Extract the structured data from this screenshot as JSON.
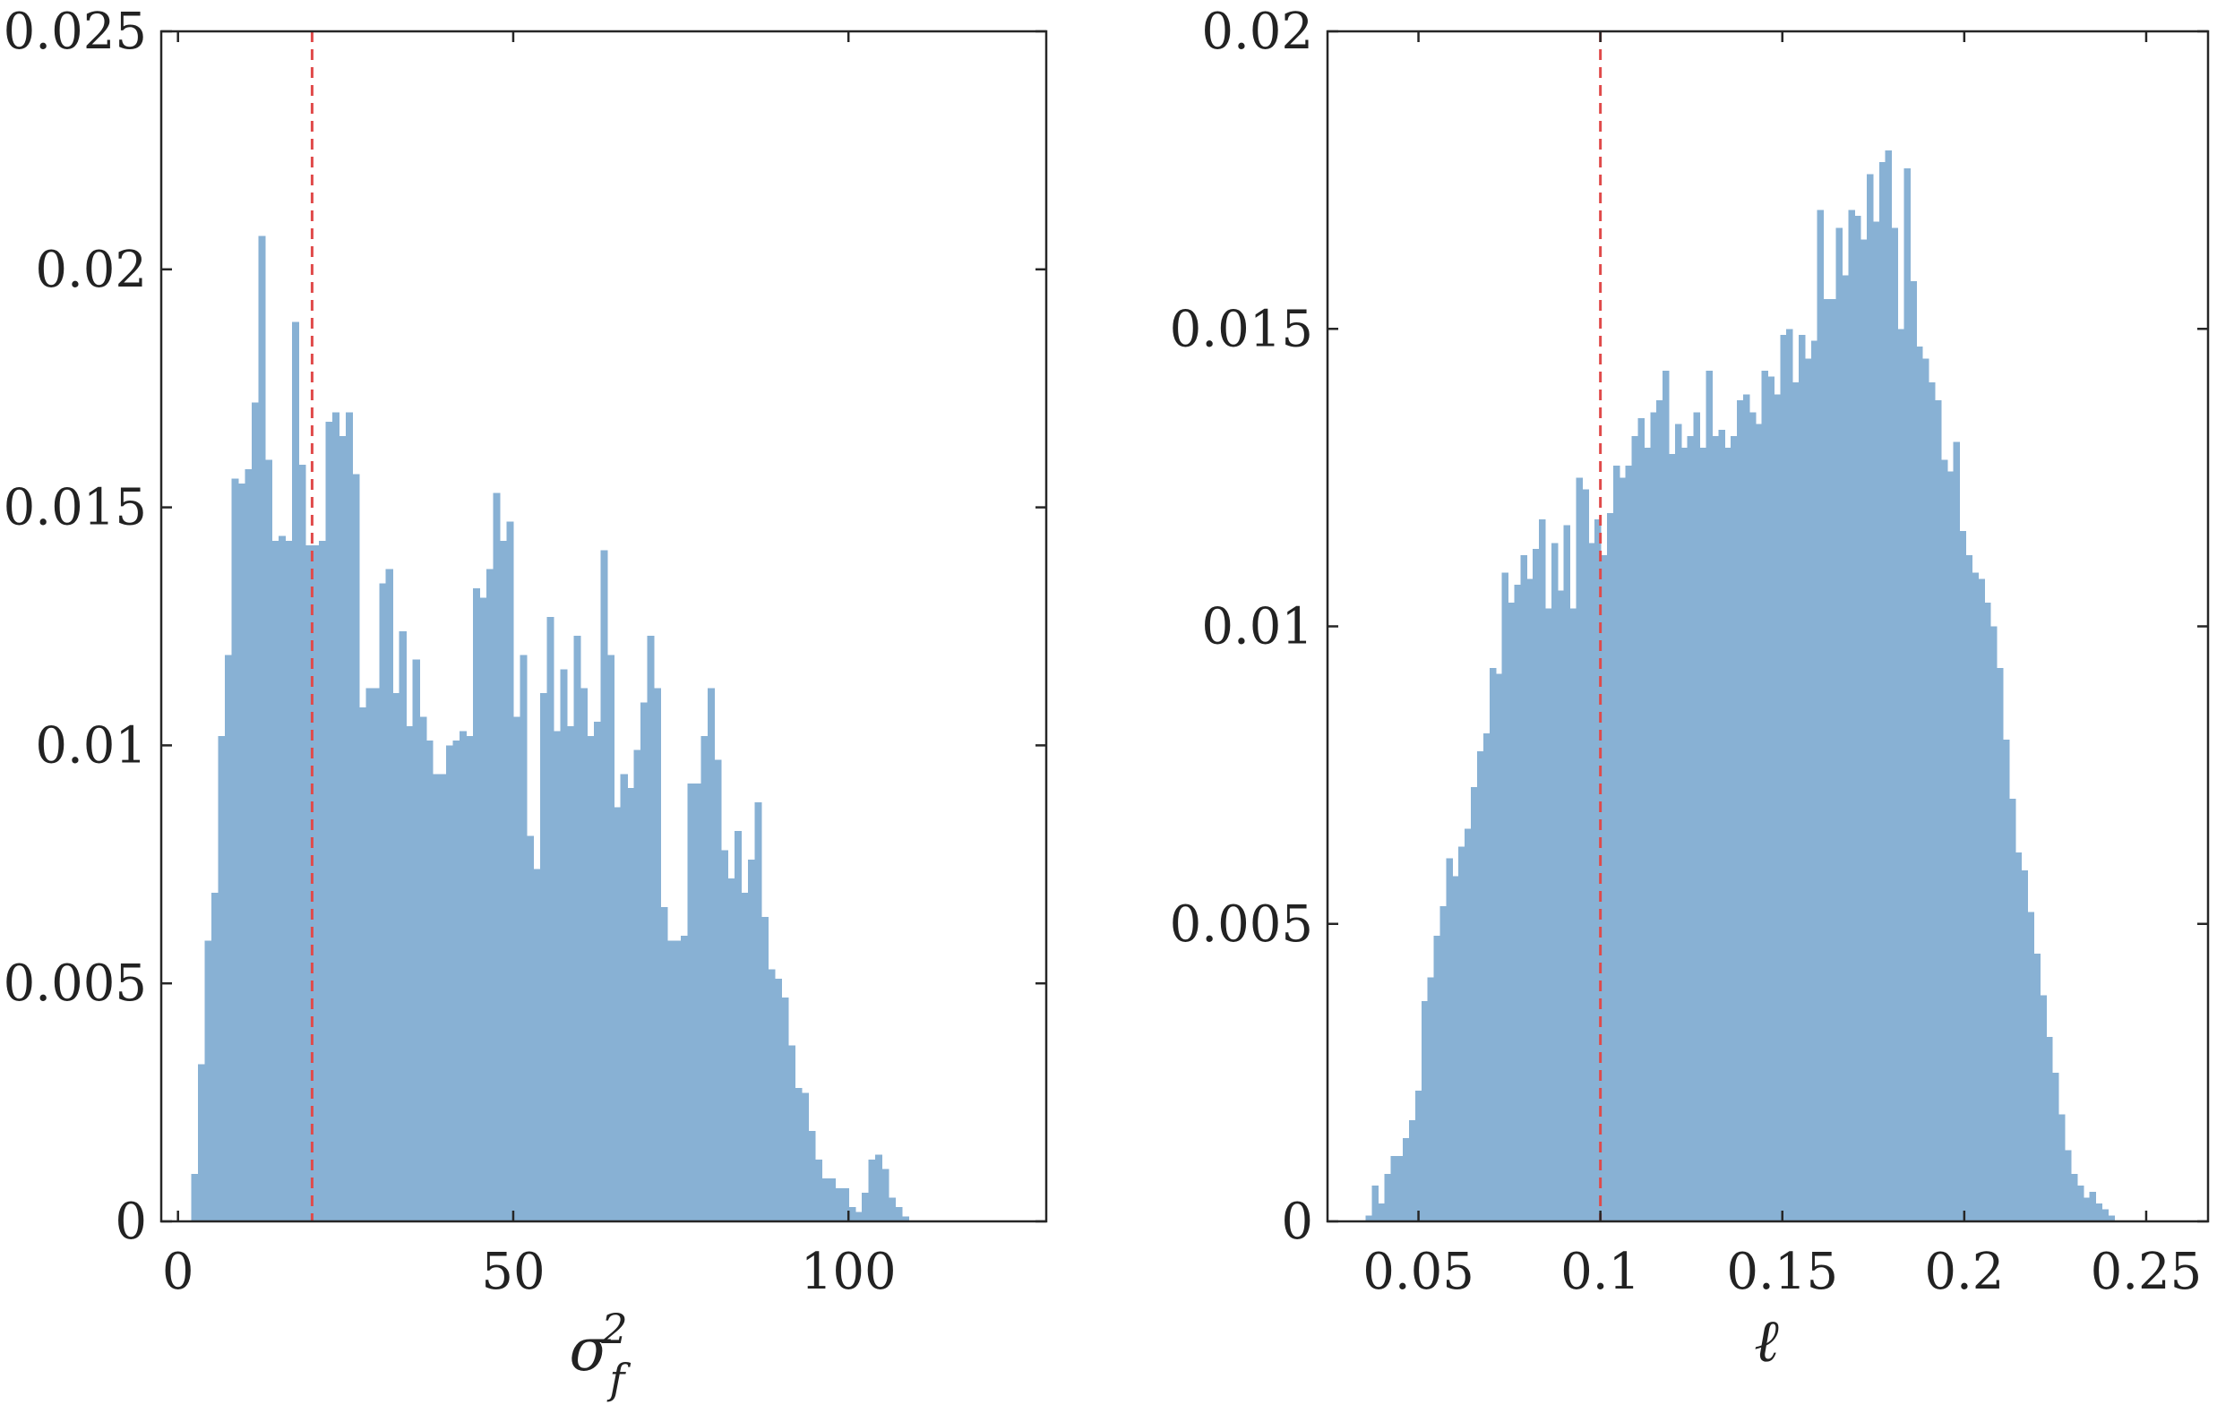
{
  "chart_data": [
    {
      "type": "bar",
      "subtype": "histogram",
      "xlabel": "σ_f^2",
      "xlabel_main": "σ",
      "xlabel_sub": "f",
      "xlabel_sup": "2",
      "ylabel": "",
      "xlim": [
        -2.5,
        129.5
      ],
      "ylim": [
        0,
        0.025
      ],
      "xticks": [
        0,
        50,
        100
      ],
      "xtick_labels": [
        "0",
        "50",
        "100"
      ],
      "yticks": [
        0,
        0.005,
        0.01,
        0.015,
        0.02,
        0.025
      ],
      "ytick_labels": [
        "0",
        "0.005",
        "0.01",
        "0.015",
        "0.02",
        "0.025"
      ],
      "bin_start": 2,
      "bin_width": 1,
      "values": [
        0.001,
        0.0033,
        0.0059,
        0.0069,
        0.0102,
        0.0119,
        0.0156,
        0.0155,
        0.0158,
        0.0172,
        0.0207,
        0.016,
        0.0143,
        0.0144,
        0.0143,
        0.0189,
        0.0159,
        0.0142,
        0.0142,
        0.0143,
        0.0168,
        0.017,
        0.0165,
        0.017,
        0.0157,
        0.0108,
        0.0112,
        0.0112,
        0.0134,
        0.0137,
        0.0111,
        0.0124,
        0.0104,
        0.0118,
        0.0106,
        0.0101,
        0.0094,
        0.0094,
        0.01,
        0.0101,
        0.0103,
        0.0102,
        0.0133,
        0.0131,
        0.0137,
        0.0153,
        0.0143,
        0.0147,
        0.0106,
        0.0119,
        0.0081,
        0.0074,
        0.0111,
        0.0127,
        0.0103,
        0.0116,
        0.0104,
        0.0123,
        0.0112,
        0.0102,
        0.0105,
        0.0141,
        0.0119,
        0.0087,
        0.0094,
        0.0091,
        0.0099,
        0.0109,
        0.0123,
        0.0112,
        0.0066,
        0.0059,
        0.0059,
        0.006,
        0.0092,
        0.0092,
        0.0102,
        0.0112,
        0.0097,
        0.0078,
        0.0072,
        0.0082,
        0.0069,
        0.0076,
        0.0088,
        0.0064,
        0.0053,
        0.0051,
        0.0047,
        0.0037,
        0.0028,
        0.0027,
        0.0019,
        0.0013,
        0.0009,
        0.0009,
        0.0007,
        0.0007,
        0.0003,
        0.0002,
        0.0006,
        0.0013,
        0.0014,
        0.0011,
        0.0005,
        0.0003,
        0.0001
      ],
      "bar_color": "#88b1d4",
      "reference_line": {
        "x": 20,
        "style": "dashed",
        "color": "#e04a4a"
      },
      "grid": false
    },
    {
      "type": "bar",
      "subtype": "histogram",
      "xlabel": "ℓ",
      "ylabel": "",
      "xlim": [
        0.025,
        0.267
      ],
      "ylim": [
        0,
        0.02
      ],
      "xticks": [
        0.05,
        0.1,
        0.15,
        0.2,
        0.25
      ],
      "xtick_labels": [
        "0.05",
        "0.1",
        "0.15",
        "0.2",
        "0.25"
      ],
      "yticks": [
        0,
        0.005,
        0.01,
        0.015,
        0.02
      ],
      "ytick_labels": [
        "0",
        "0.005",
        "0.01",
        "0.015",
        "0.02"
      ],
      "bin_start": 0.0355,
      "bin_width": 0.0017,
      "values": [
        0.0001,
        0.0006,
        0.0003,
        0.0008,
        0.0011,
        0.0011,
        0.0014,
        0.0017,
        0.0022,
        0.0037,
        0.0041,
        0.0048,
        0.0053,
        0.0061,
        0.0058,
        0.0063,
        0.0066,
        0.0073,
        0.0079,
        0.0082,
        0.0093,
        0.0092,
        0.0109,
        0.0104,
        0.0107,
        0.0112,
        0.0108,
        0.0113,
        0.0118,
        0.0103,
        0.0114,
        0.0106,
        0.0117,
        0.0103,
        0.0125,
        0.0123,
        0.0114,
        0.0118,
        0.0112,
        0.0119,
        0.0127,
        0.0125,
        0.0127,
        0.0132,
        0.0135,
        0.013,
        0.0136,
        0.0138,
        0.0143,
        0.0129,
        0.0134,
        0.013,
        0.0132,
        0.0136,
        0.013,
        0.0143,
        0.0132,
        0.0133,
        0.013,
        0.0132,
        0.0138,
        0.0139,
        0.0136,
        0.0134,
        0.0143,
        0.0142,
        0.0139,
        0.0149,
        0.015,
        0.0141,
        0.0149,
        0.0145,
        0.0148,
        0.017,
        0.0155,
        0.0155,
        0.0167,
        0.0159,
        0.017,
        0.0169,
        0.0165,
        0.0176,
        0.0168,
        0.0178,
        0.018,
        0.0167,
        0.015,
        0.0177,
        0.0158,
        0.0147,
        0.0145,
        0.0141,
        0.0138,
        0.0128,
        0.0126,
        0.0131,
        0.0116,
        0.0112,
        0.0109,
        0.0108,
        0.0104,
        0.01,
        0.0093,
        0.0081,
        0.0071,
        0.0062,
        0.0059,
        0.0052,
        0.0045,
        0.0038,
        0.0031,
        0.0025,
        0.0018,
        0.0012,
        0.0008,
        0.0006,
        0.0004,
        0.0005,
        0.0003,
        0.0002,
        0.0001
      ],
      "bar_color": "#88b1d4",
      "reference_line": {
        "x": 0.1,
        "style": "dashed",
        "color": "#e04a4a"
      },
      "grid": false
    }
  ]
}
